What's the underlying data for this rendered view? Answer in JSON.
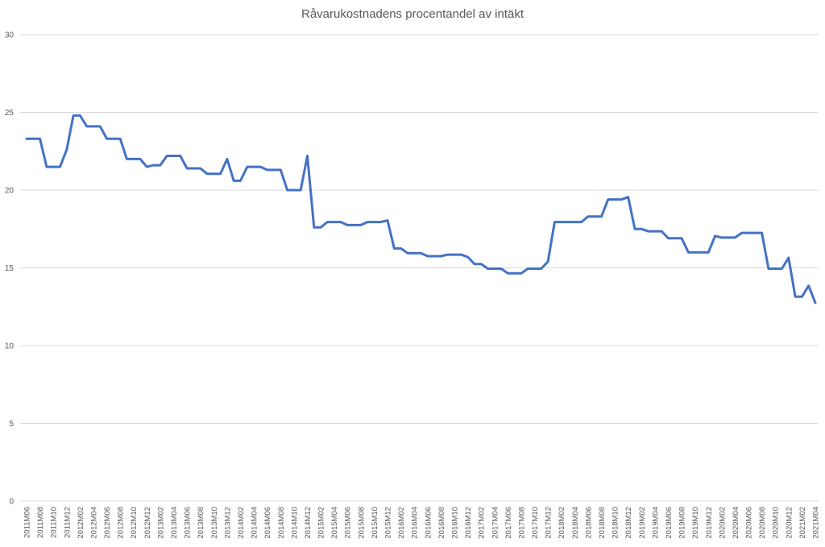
{
  "chart_data": {
    "type": "line",
    "title": "Råvarukostnadens procentandel av intäkt",
    "xlabel": "",
    "ylabel": "",
    "ylim": [
      0,
      30
    ],
    "yticks": [
      0,
      5,
      10,
      15,
      20,
      25,
      30
    ],
    "grid": true,
    "legend": null,
    "line_color": "#4472C4",
    "x_tick_labels": [
      "2011M06",
      "2011M08",
      "2011M10",
      "2011M12",
      "2012M02",
      "2012M04",
      "2012M06",
      "2012M08",
      "2012M10",
      "2012M12",
      "2013M02",
      "2013M04",
      "2013M06",
      "2013M08",
      "2013M10",
      "2013M12",
      "2014M02",
      "2014M04",
      "2014M06",
      "2014M08",
      "2014M10",
      "2014M12",
      "2015M02",
      "2015M04",
      "2015M06",
      "2015M08",
      "2015M10",
      "2015M12",
      "2016M02",
      "2016M04",
      "2016M06",
      "2016M08",
      "2016M10",
      "2016M12",
      "2017M02",
      "2017M04",
      "2017M06",
      "2017M08",
      "2017M10",
      "2017M12",
      "2018M02",
      "2018M04",
      "2018M06",
      "2018M08",
      "2018M10",
      "2018M12",
      "2019M02",
      "2019M04",
      "2019M06",
      "2019M08",
      "2019M10",
      "2019M12",
      "2020M02",
      "2020M04",
      "2020M06",
      "2020M08",
      "2020M10",
      "2020M12",
      "2021M02",
      "2021M04"
    ],
    "x": [
      "2011M06",
      "2011M07",
      "2011M08",
      "2011M09",
      "2011M10",
      "2011M11",
      "2011M12",
      "2012M01",
      "2012M02",
      "2012M03",
      "2012M04",
      "2012M05",
      "2012M06",
      "2012M07",
      "2012M08",
      "2012M09",
      "2012M10",
      "2012M11",
      "2012M12",
      "2013M01",
      "2013M02",
      "2013M03",
      "2013M04",
      "2013M05",
      "2013M06",
      "2013M07",
      "2013M08",
      "2013M09",
      "2013M10",
      "2013M11",
      "2013M12",
      "2014M01",
      "2014M02",
      "2014M03",
      "2014M04",
      "2014M05",
      "2014M06",
      "2014M07",
      "2014M08",
      "2014M09",
      "2014M10",
      "2014M11",
      "2014M12",
      "2015M01",
      "2015M02",
      "2015M03",
      "2015M04",
      "2015M05",
      "2015M06",
      "2015M07",
      "2015M08",
      "2015M09",
      "2015M10",
      "2015M11",
      "2015M12",
      "2016M01",
      "2016M02",
      "2016M03",
      "2016M04",
      "2016M05",
      "2016M06",
      "2016M07",
      "2016M08",
      "2016M09",
      "2016M10",
      "2016M11",
      "2016M12",
      "2017M01",
      "2017M02",
      "2017M03",
      "2017M04",
      "2017M05",
      "2017M06",
      "2017M07",
      "2017M08",
      "2017M09",
      "2017M10",
      "2017M11",
      "2017M12",
      "2018M01",
      "2018M02",
      "2018M03",
      "2018M04",
      "2018M05",
      "2018M06",
      "2018M07",
      "2018M08",
      "2018M09",
      "2018M10",
      "2018M11",
      "2018M12",
      "2019M01",
      "2019M02",
      "2019M03",
      "2019M04",
      "2019M05",
      "2019M06",
      "2019M07",
      "2019M08",
      "2019M09",
      "2019M10",
      "2019M11",
      "2019M12",
      "2020M01",
      "2020M02",
      "2020M03",
      "2020M04",
      "2020M05",
      "2020M06",
      "2020M07",
      "2020M08",
      "2020M09",
      "2020M10",
      "2020M11",
      "2020M12",
      "2021M01",
      "2021M02",
      "2021M03",
      "2021M04"
    ],
    "series": [
      {
        "name": "Råvarukostnadens procentandel av intäkt",
        "values": [
          23.3,
          23.3,
          23.3,
          21.5,
          21.5,
          21.5,
          22.6,
          24.8,
          24.8,
          24.1,
          24.1,
          24.1,
          23.3,
          23.3,
          23.3,
          22.0,
          22.0,
          22.0,
          21.5,
          21.6,
          21.6,
          22.2,
          22.2,
          22.2,
          21.4,
          21.4,
          21.4,
          21.05,
          21.05,
          21.05,
          22.0,
          20.6,
          20.6,
          21.5,
          21.5,
          21.5,
          21.3,
          21.3,
          21.3,
          20.0,
          20.0,
          20.0,
          22.2,
          17.6,
          17.6,
          17.95,
          17.95,
          17.95,
          17.75,
          17.75,
          17.75,
          17.95,
          17.95,
          17.95,
          18.05,
          16.25,
          16.25,
          15.95,
          15.95,
          15.95,
          15.75,
          15.75,
          15.75,
          15.85,
          15.85,
          15.85,
          15.7,
          15.25,
          15.25,
          14.95,
          14.95,
          14.95,
          14.65,
          14.65,
          14.65,
          14.95,
          14.95,
          14.95,
          15.4,
          17.95,
          17.95,
          17.95,
          17.95,
          17.95,
          18.3,
          18.3,
          18.3,
          19.4,
          19.4,
          19.4,
          19.55,
          17.5,
          17.5,
          17.35,
          17.35,
          17.35,
          16.9,
          16.9,
          16.9,
          16.0,
          16.0,
          16.0,
          16.0,
          17.05,
          16.95,
          16.95,
          16.95,
          17.25,
          17.25,
          17.25,
          17.25,
          14.95,
          14.95,
          14.95,
          15.65,
          13.15,
          13.15,
          13.85,
          12.75
        ]
      }
    ]
  }
}
